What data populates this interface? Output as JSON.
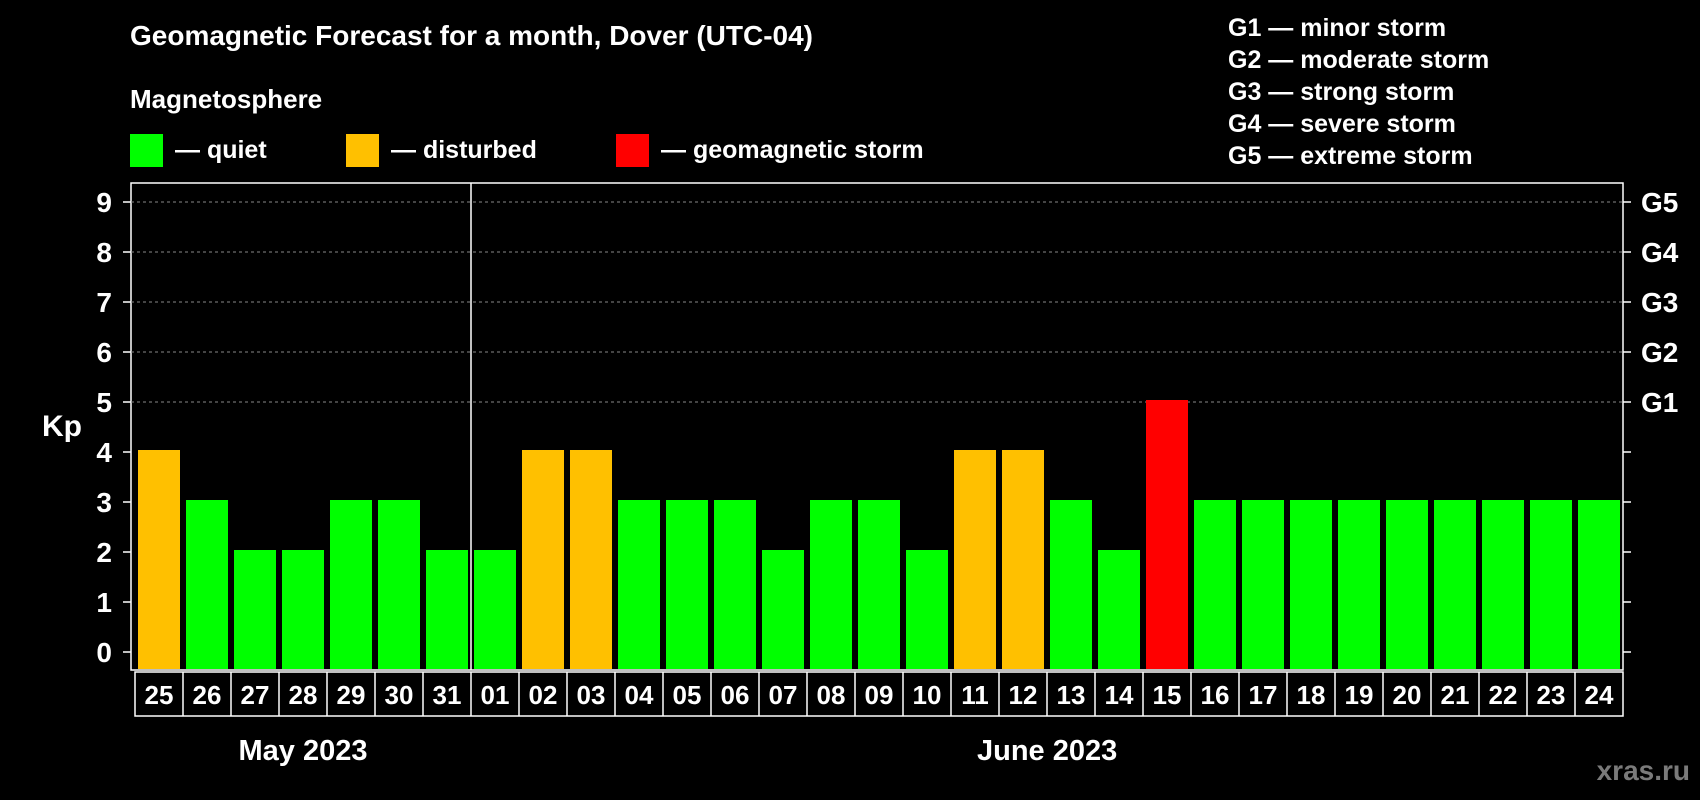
{
  "header": {
    "title": "Geomagnetic Forecast for a month, Dover (UTC-04)",
    "subtitle": "Magnetosphere"
  },
  "legend": {
    "items": [
      {
        "label": "— quiet",
        "color": "#00ff00"
      },
      {
        "label": "— disturbed",
        "color": "#ffc000"
      },
      {
        "label": "— geomagnetic storm",
        "color": "#ff0000"
      }
    ]
  },
  "storm_levels": [
    "G1 — minor storm",
    "G2 — moderate storm",
    "G3 — strong storm",
    "G4 — severe storm",
    "G5 — extreme storm"
  ],
  "axis": {
    "ylabel": "Kp",
    "months": [
      "May 2023",
      "June 2023"
    ]
  },
  "watermark": "xras.ru",
  "chart_data": {
    "type": "bar",
    "title": "Geomagnetic Forecast for a month, Dover (UTC-04)",
    "ylabel": "Kp",
    "ylim": [
      0,
      9
    ],
    "yticks": [
      0,
      1,
      2,
      3,
      4,
      5,
      6,
      7,
      8,
      9
    ],
    "right_ticks": [
      {
        "value": 5,
        "label": "G1"
      },
      {
        "value": 6,
        "label": "G2"
      },
      {
        "value": 7,
        "label": "G3"
      },
      {
        "value": 8,
        "label": "G4"
      },
      {
        "value": 9,
        "label": "G5"
      }
    ],
    "grid": "horizontal dashed at Kp 5-9",
    "categories": [
      "25",
      "26",
      "27",
      "28",
      "29",
      "30",
      "31",
      "01",
      "02",
      "03",
      "04",
      "05",
      "06",
      "07",
      "08",
      "09",
      "10",
      "11",
      "12",
      "13",
      "14",
      "15",
      "16",
      "17",
      "18",
      "19",
      "20",
      "21",
      "22",
      "23",
      "24"
    ],
    "values": [
      4,
      3,
      2,
      2,
      3,
      3,
      2,
      2,
      4,
      4,
      3,
      3,
      3,
      2,
      3,
      3,
      2,
      4,
      4,
      3,
      2,
      5,
      3,
      3,
      3,
      3,
      3,
      3,
      3,
      3,
      3
    ],
    "colors": {
      "quiet": "#00ff00",
      "disturbed": "#ffc000",
      "storm": "#ff0000"
    },
    "month_groups": [
      {
        "label": "May 2023",
        "start": 0,
        "count": 7
      },
      {
        "label": "June 2023",
        "start": 7,
        "count": 24
      }
    ]
  }
}
